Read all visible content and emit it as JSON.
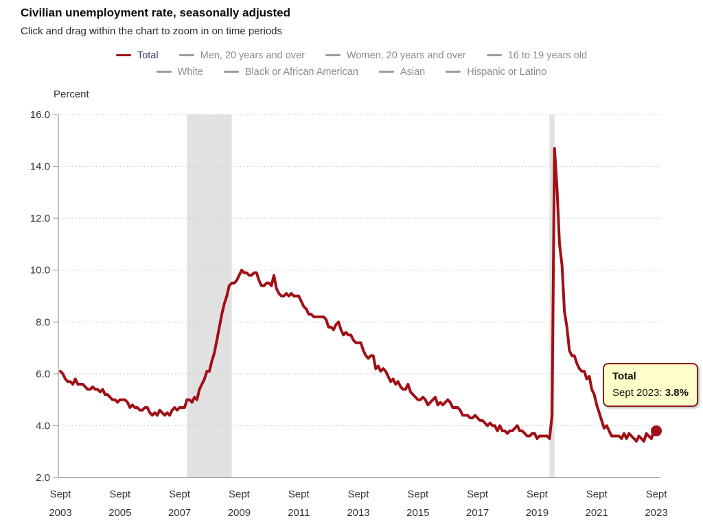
{
  "header": {
    "title": "Civilian unemployment rate, seasonally adjusted",
    "subtitle": "Click and drag within the chart to zoom in on time periods"
  },
  "colors": {
    "accent": "#a01016",
    "inactive_dash": "#9a9a9a",
    "inactive_text": "#8a8a8a",
    "active_text": "#393f6a",
    "band": "#e1e1e1",
    "grid": "#cbcbcb",
    "axis": "#999999",
    "tick_text": "#333333"
  },
  "legend": {
    "rows": [
      [
        {
          "label": "Total",
          "active": true
        },
        {
          "label": "Men, 20 years and over",
          "active": false
        },
        {
          "label": "Women, 20 years and over",
          "active": false
        },
        {
          "label": "16 to 19 years old",
          "active": false
        }
      ],
      [
        {
          "label": "White",
          "active": false
        },
        {
          "label": "Black or African American",
          "active": false
        },
        {
          "label": "Asian",
          "active": false
        },
        {
          "label": "Hispanic or Latino",
          "active": false
        }
      ]
    ]
  },
  "tooltip": {
    "series": "Total",
    "date_label": "Sept 2023: ",
    "value": "3.8%"
  },
  "chart_data": {
    "type": "line",
    "title": "Civilian unemployment rate, seasonally adjusted",
    "ylabel": "Percent",
    "ylim": [
      2.0,
      16.0
    ],
    "ytick_step": 2.0,
    "x_start": "2003-09",
    "x_frequency": "monthly",
    "xticks": [
      {
        "top": "Sept",
        "bottom": "2003"
      },
      {
        "top": "Sept",
        "bottom": "2005"
      },
      {
        "top": "Sept",
        "bottom": "2007"
      },
      {
        "top": "Sept",
        "bottom": "2009"
      },
      {
        "top": "Sept",
        "bottom": "2011"
      },
      {
        "top": "Sept",
        "bottom": "2013"
      },
      {
        "top": "Sept",
        "bottom": "2015"
      },
      {
        "top": "Sept",
        "bottom": "2017"
      },
      {
        "top": "Sept",
        "bottom": "2019"
      },
      {
        "top": "Sept",
        "bottom": "2021"
      },
      {
        "top": "Sept",
        "bottom": "2023"
      }
    ],
    "recession_bands": [
      {
        "start": "2007-12",
        "end": "2009-06"
      },
      {
        "start": "2020-02",
        "end": "2020-04"
      }
    ],
    "series": [
      {
        "name": "Total",
        "color": "#a01016",
        "last_point_marker": true,
        "values": [
          6.1,
          6.0,
          5.8,
          5.7,
          5.7,
          5.6,
          5.8,
          5.6,
          5.6,
          5.6,
          5.5,
          5.4,
          5.4,
          5.5,
          5.4,
          5.4,
          5.3,
          5.4,
          5.2,
          5.2,
          5.1,
          5.0,
          5.0,
          4.9,
          5.0,
          5.0,
          5.0,
          4.9,
          4.7,
          4.8,
          4.7,
          4.7,
          4.6,
          4.6,
          4.7,
          4.7,
          4.5,
          4.4,
          4.5,
          4.4,
          4.6,
          4.5,
          4.4,
          4.5,
          4.4,
          4.6,
          4.7,
          4.6,
          4.7,
          4.7,
          4.7,
          5.0,
          5.0,
          4.9,
          5.1,
          5.0,
          5.4,
          5.6,
          5.8,
          6.1,
          6.1,
          6.5,
          6.8,
          7.3,
          7.8,
          8.3,
          8.7,
          9.0,
          9.4,
          9.5,
          9.5,
          9.6,
          9.8,
          10.0,
          9.9,
          9.9,
          9.8,
          9.8,
          9.9,
          9.9,
          9.6,
          9.4,
          9.4,
          9.5,
          9.5,
          9.4,
          9.8,
          9.3,
          9.1,
          9.0,
          9.0,
          9.1,
          9.0,
          9.1,
          9.0,
          9.0,
          9.0,
          8.8,
          8.6,
          8.5,
          8.3,
          8.3,
          8.2,
          8.2,
          8.2,
          8.2,
          8.2,
          8.1,
          7.8,
          7.8,
          7.7,
          7.9,
          8.0,
          7.7,
          7.5,
          7.6,
          7.5,
          7.5,
          7.3,
          7.2,
          7.2,
          7.2,
          6.9,
          6.7,
          6.6,
          6.7,
          6.7,
          6.2,
          6.3,
          6.1,
          6.2,
          6.1,
          5.9,
          5.7,
          5.8,
          5.6,
          5.7,
          5.5,
          5.4,
          5.4,
          5.6,
          5.3,
          5.2,
          5.1,
          5.0,
          5.0,
          5.1,
          5.0,
          4.8,
          4.9,
          5.0,
          5.1,
          4.8,
          4.9,
          4.8,
          4.9,
          5.0,
          4.9,
          4.7,
          4.7,
          4.7,
          4.6,
          4.4,
          4.4,
          4.4,
          4.3,
          4.3,
          4.4,
          4.3,
          4.2,
          4.2,
          4.1,
          4.0,
          4.1,
          4.0,
          4.0,
          3.8,
          4.0,
          3.8,
          3.8,
          3.7,
          3.8,
          3.8,
          3.9,
          4.0,
          3.8,
          3.8,
          3.7,
          3.6,
          3.6,
          3.7,
          3.7,
          3.5,
          3.6,
          3.6,
          3.6,
          3.6,
          3.5,
          4.4,
          14.7,
          13.2,
          11.0,
          10.2,
          8.4,
          7.8,
          6.9,
          6.7,
          6.7,
          6.4,
          6.2,
          6.1,
          6.1,
          5.8,
          5.9,
          5.4,
          5.2,
          4.8,
          4.5,
          4.2,
          3.9,
          4.0,
          3.8,
          3.6,
          3.6,
          3.6,
          3.6,
          3.5,
          3.7,
          3.5,
          3.7,
          3.6,
          3.5,
          3.4,
          3.6,
          3.5,
          3.4,
          3.7,
          3.6,
          3.5,
          3.8,
          3.8
        ]
      }
    ],
    "inactive_series_names": [
      "Men, 20 years and over",
      "Women, 20 years and over",
      "16 to 19 years old",
      "White",
      "Black or African American",
      "Asian",
      "Hispanic or Latino"
    ]
  }
}
